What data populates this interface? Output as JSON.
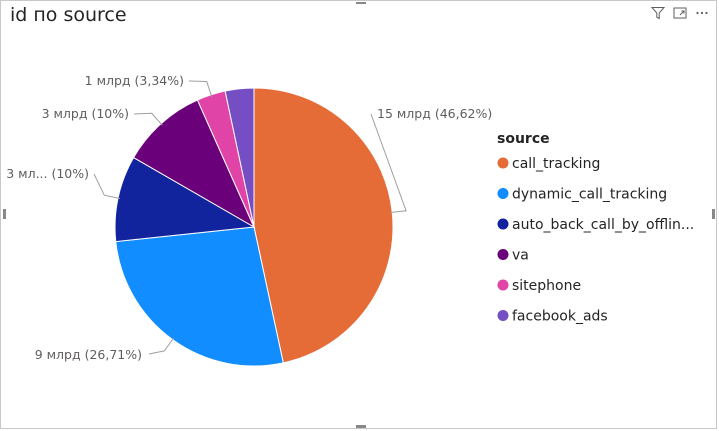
{
  "title": "id по source",
  "header_icons": [
    "filter-icon",
    "focus-mode-icon",
    "more-options-icon"
  ],
  "chart_data": {
    "type": "pie",
    "title": "id по source",
    "legend_title": "source",
    "legend_position": "right",
    "slices": [
      {
        "name": "call_tracking",
        "legend_label": "call_tracking",
        "percent": 46.62,
        "label": "15 млрд (46,62%)",
        "color": "#E66C37"
      },
      {
        "name": "dynamic_call_tracking",
        "legend_label": "dynamic_call_tracking",
        "percent": 26.71,
        "label": "9 млрд (26,71%)",
        "color": "#118DFF"
      },
      {
        "name": "auto_back_call_by_offline",
        "legend_label": "auto_back_call_by_offlin...",
        "percent": 10.0,
        "label": "3 мл... (10%)",
        "color": "#12239E"
      },
      {
        "name": "va",
        "legend_label": "va",
        "percent": 10.0,
        "label": "3 млрд (10%)",
        "color": "#6B007B"
      },
      {
        "name": "sitephone",
        "legend_label": "sitephone",
        "percent": 3.34,
        "label": "1 млрд (3,34%)",
        "color": "#E044A7"
      },
      {
        "name": "facebook_ads",
        "legend_label": "facebook_ads",
        "percent": 3.33,
        "label": "",
        "color": "#744EC2"
      }
    ]
  }
}
